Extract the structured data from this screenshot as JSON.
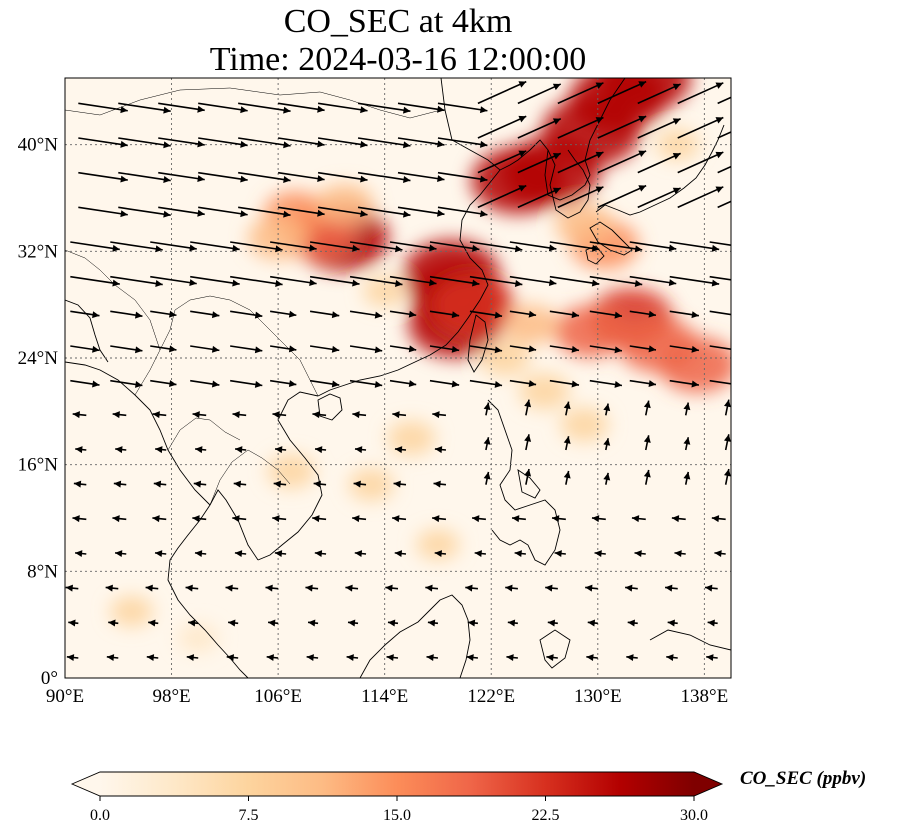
{
  "title": {
    "line1": "CO_SEC at 4km",
    "line2": "Time: 2024-03-16 12:00:00"
  },
  "map": {
    "lon_range": [
      90,
      140
    ],
    "lat_range": [
      0,
      45
    ],
    "lon_ticks": [
      {
        "v": 90,
        "label": "90°E"
      },
      {
        "v": 98,
        "label": "98°E"
      },
      {
        "v": 106,
        "label": "106°E"
      },
      {
        "v": 114,
        "label": "114°E"
      },
      {
        "v": 122,
        "label": "122°E"
      },
      {
        "v": 130,
        "label": "130°E"
      },
      {
        "v": 138,
        "label": "138°E"
      }
    ],
    "lat_ticks": [
      {
        "v": 0,
        "label": "0°"
      },
      {
        "v": 8,
        "label": "8°N"
      },
      {
        "v": 16,
        "label": "16°N"
      },
      {
        "v": 24,
        "label": "24°N"
      },
      {
        "v": 32,
        "label": "32°N"
      },
      {
        "v": 40,
        "label": "40°N"
      }
    ],
    "gridlines": true,
    "coastlines": true,
    "wind_vectors": true
  },
  "colorbar": {
    "label": "CO_SEC (ppbv)",
    "colormap": "OrRd",
    "range": [
      0,
      30
    ],
    "extend": "both",
    "ticks": [
      {
        "v": 0,
        "label": "0.0"
      },
      {
        "v": 7.5,
        "label": "7.5"
      },
      {
        "v": 15,
        "label": "15.0"
      },
      {
        "v": 22.5,
        "label": "22.5"
      },
      {
        "v": 30,
        "label": "30.0"
      }
    ],
    "colors": [
      "#fff7ec",
      "#fee8c8",
      "#fdd49e",
      "#fdbb84",
      "#fc8d59",
      "#ef6548",
      "#d7301f",
      "#b30000",
      "#7f0000"
    ]
  },
  "plumes": [
    {
      "lon": 126.5,
      "lat": 38.0,
      "value": 28
    },
    {
      "lon": 129.5,
      "lat": 41.0,
      "value": 28
    },
    {
      "lon": 131.5,
      "lat": 43.5,
      "value": 27
    },
    {
      "lon": 133.5,
      "lat": 45.0,
      "value": 26
    },
    {
      "lon": 124.0,
      "lat": 37.3,
      "value": 26
    },
    {
      "lon": 119.0,
      "lat": 30.3,
      "value": 27
    },
    {
      "lon": 119.6,
      "lat": 28.5,
      "value": 27
    },
    {
      "lon": 119.3,
      "lat": 26.5,
      "value": 26
    },
    {
      "lon": 120.6,
      "lat": 28.0,
      "value": 22
    },
    {
      "lon": 110.8,
      "lat": 33.0,
      "value": 26
    },
    {
      "lon": 109.0,
      "lat": 33.3,
      "value": 18
    },
    {
      "lon": 107.3,
      "lat": 34.8,
      "value": 14
    },
    {
      "lon": 106.0,
      "lat": 33.0,
      "value": 13
    },
    {
      "lon": 111.0,
      "lat": 35.5,
      "value": 12
    },
    {
      "lon": 132.5,
      "lat": 27.0,
      "value": 22
    },
    {
      "lon": 134.5,
      "lat": 25.0,
      "value": 20
    },
    {
      "lon": 137.5,
      "lat": 23.5,
      "value": 20
    },
    {
      "lon": 129.5,
      "lat": 26.0,
      "value": 18
    },
    {
      "lon": 130.5,
      "lat": 32.5,
      "value": 16
    },
    {
      "lon": 129.0,
      "lat": 34.0,
      "value": 12
    },
    {
      "lon": 125.0,
      "lat": 26.5,
      "value": 11
    },
    {
      "lon": 123.0,
      "lat": 24.0,
      "value": 9
    },
    {
      "lon": 126.0,
      "lat": 21.5,
      "value": 9
    },
    {
      "lon": 129.0,
      "lat": 19.0,
      "value": 8
    },
    {
      "lon": 116.0,
      "lat": 18.0,
      "value": 8
    },
    {
      "lon": 113.0,
      "lat": 14.5,
      "value": 7
    },
    {
      "lon": 107.0,
      "lat": 15.5,
      "value": 8
    },
    {
      "lon": 118.0,
      "lat": 10.0,
      "value": 6
    },
    {
      "lon": 95.0,
      "lat": 5.0,
      "value": 6
    },
    {
      "lon": 100.0,
      "lat": 3.0,
      "value": 5
    },
    {
      "lon": 136.0,
      "lat": 40.0,
      "value": 6
    },
    {
      "lon": 114.0,
      "lat": 29.0,
      "value": 6
    }
  ]
}
